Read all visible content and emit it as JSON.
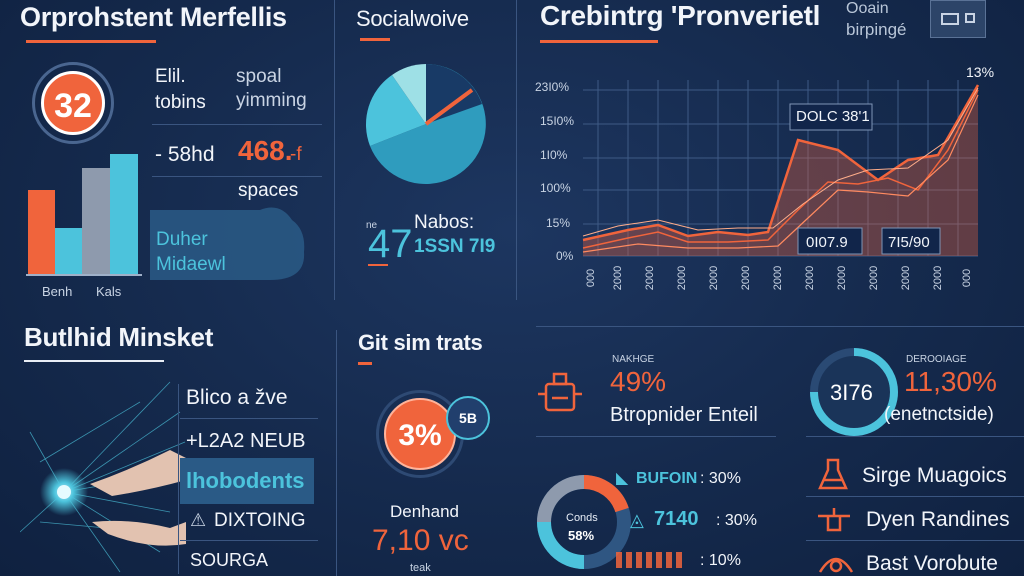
{
  "sections": {
    "top_left_title": "Orprohstent Merfellis",
    "social_title": "Socialwoive",
    "chart_title": "Crebintrg 'Pronverietl",
    "market_title": "Butlhid Minsket",
    "stats_title": "Git sim trats"
  },
  "top_left": {
    "badge_value": "32",
    "label_a1": "Elil.",
    "label_a2": "tobins",
    "label_b1": "spoal",
    "label_b2": "yimming",
    "metric_prefix": "- 58hd",
    "metric_value": "468.",
    "metric_suffix": "-f",
    "spaces": "spaces",
    "cloud_line1": "Duher",
    "cloud_line2": "Midaewl",
    "bar_label_1": "Benh",
    "bar_label_2": "Kals"
  },
  "social": {
    "small_label": "ne",
    "big_number": "47",
    "label": "Nabos:",
    "sub_label": "1SSN 7I9"
  },
  "top_right": {
    "label1": "Ooain",
    "label2": "birpingé"
  },
  "line_chart": {
    "y_ticks": [
      "23I0%",
      "15I0%",
      "1I0%",
      "100%",
      "15%",
      "0%"
    ],
    "x_ticks": [
      "000",
      "2000",
      "2000",
      "2000",
      "2000",
      "2000",
      "2000",
      "2000",
      "2000",
      "2000",
      "2000",
      "2000",
      "000"
    ],
    "peak_label": "13%",
    "callout_top": "DOLC 38'1",
    "callout_mid1": "0I07.9",
    "callout_mid2": "7I5/90"
  },
  "market": {
    "items": [
      "Blico a žve",
      "+L2A2 NEUB",
      "lhobodents",
      "DIXTOING",
      "SOURGA"
    ]
  },
  "stats": {
    "badge_small": "5B",
    "big_percent": "3%",
    "label": "Denhand",
    "value": "7,10 vc",
    "small": "teak"
  },
  "middle_right": {
    "card1_label": "NAKHGE",
    "card1_value": "49%",
    "card1_desc": "Btropnider Enteil",
    "donut_center_label": "Conds",
    "donut_center_value": "58%",
    "row1_label": "BUFOIN",
    "row1_value": ": 30%",
    "row2_label": "7140",
    "row2_value": ": 30%",
    "row3_label": "",
    "row3_value": ": 10%"
  },
  "far_right": {
    "card_label": "DEROOIAGE",
    "card_value": "11,30%",
    "card_desc": "(enetnctside)",
    "circle_value": "3I76",
    "item1": "Sirge Muagoics",
    "item2": "Dyen Randines",
    "item3": "Bast Vorobute"
  },
  "colors": {
    "background": "#152a4d",
    "accent_orange": "#f0643c",
    "accent_cyan": "#4cc3dc",
    "grey_bar": "#8e9aad"
  }
}
